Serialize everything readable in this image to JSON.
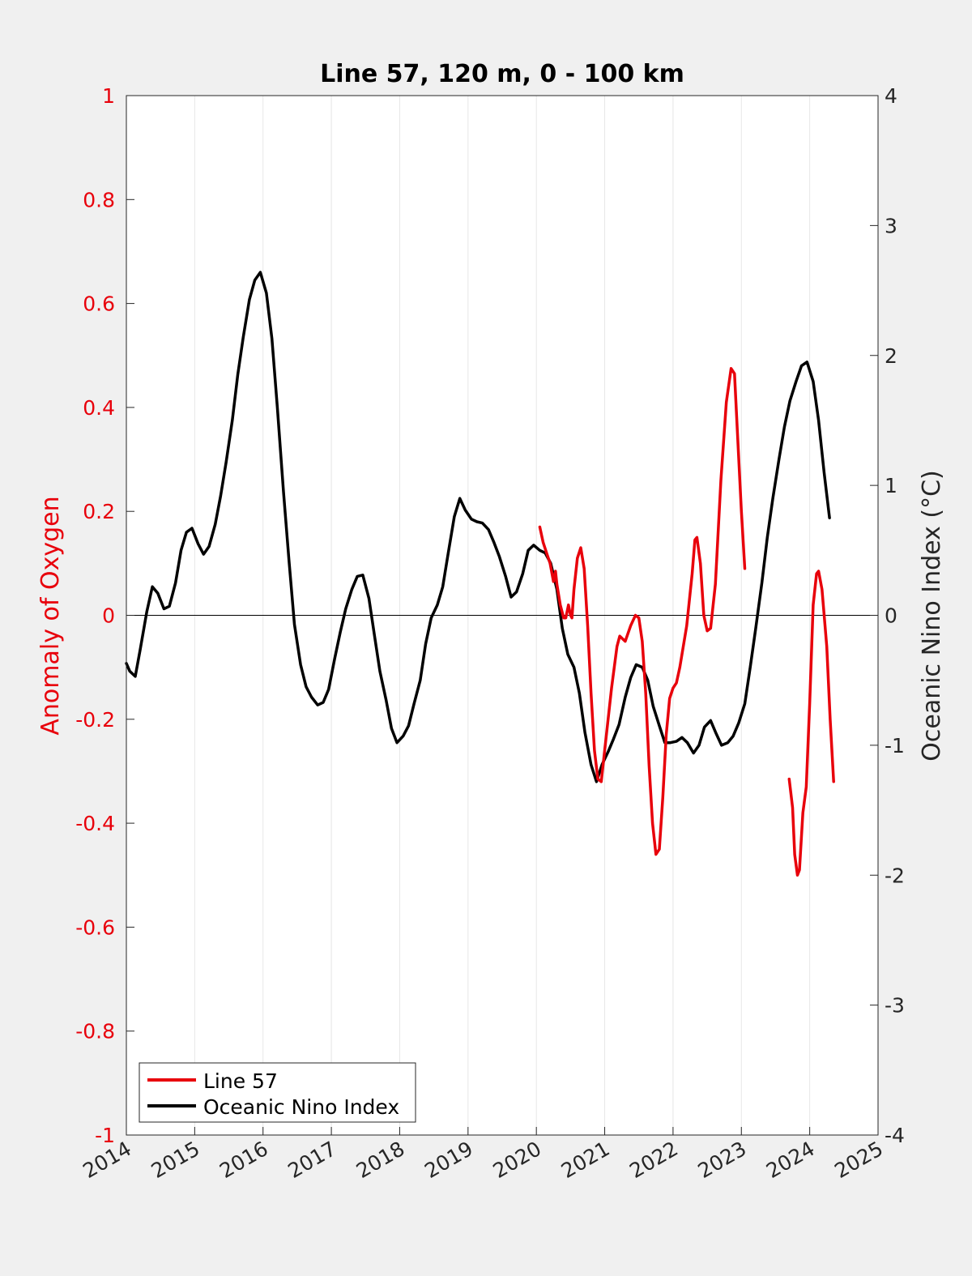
{
  "chart_data": {
    "type": "line",
    "title": "Line 57, 120 m, 0 - 100 km",
    "xlabel": "",
    "ylabel_left": "Anomaly of Oxygen",
    "ylabel_right": "Oceanic Nino Index (°C)",
    "xlim": [
      2014,
      2025
    ],
    "ylim_left": [
      -1,
      1
    ],
    "ylim_right": [
      -4,
      4
    ],
    "x_ticks": [
      2014,
      2015,
      2016,
      2017,
      2018,
      2019,
      2020,
      2021,
      2022,
      2023,
      2024,
      2025
    ],
    "x_tick_labels": [
      "2014",
      "2015",
      "2016",
      "2017",
      "2018",
      "2019",
      "2020",
      "2021",
      "2022",
      "2023",
      "2024",
      "2025"
    ],
    "y_left_ticks": [
      -1,
      -0.8,
      -0.6,
      -0.4,
      -0.2,
      0,
      0.2,
      0.4,
      0.6,
      0.8,
      1
    ],
    "y_left_tick_labels": [
      "-1",
      "-0.8",
      "-0.6",
      "-0.4",
      "-0.2",
      "0",
      "0.2",
      "0.4",
      "0.6",
      "0.8",
      "1"
    ],
    "y_right_ticks": [
      -4,
      -3,
      -2,
      -1,
      0,
      1,
      2,
      3,
      4
    ],
    "y_right_tick_labels": [
      "-4",
      "-3",
      "-2",
      "-1",
      "0",
      "1",
      "2",
      "3",
      "4"
    ],
    "grid": "vertical",
    "zero_line": true,
    "legend_position": "bottom-left",
    "colors": {
      "line57": "#e8000b",
      "oni": "#000000",
      "left_axis": "#e8000b",
      "right_axis": "#262626",
      "background": "#f0f0f0",
      "plot_area": "#ffffff"
    },
    "series": [
      {
        "name": "Line 57",
        "axis": "left",
        "segments": [
          [
            [
              2020.05,
              0.17
            ],
            [
              2020.1,
              0.14
            ],
            [
              2020.15,
              0.12
            ],
            [
              2020.2,
              0.1
            ],
            [
              2020.25,
              0.065
            ],
            [
              2020.28,
              0.085
            ],
            [
              2020.3,
              0.06
            ],
            [
              2020.35,
              0.02
            ],
            [
              2020.4,
              -0.005
            ],
            [
              2020.43,
              -0.005
            ],
            [
              2020.47,
              0.02
            ],
            [
              2020.5,
              0.0
            ],
            [
              2020.52,
              -0.005
            ],
            [
              2020.55,
              0.05
            ],
            [
              2020.6,
              0.11
            ],
            [
              2020.65,
              0.13
            ],
            [
              2020.7,
              0.09
            ],
            [
              2020.75,
              -0.02
            ],
            [
              2020.8,
              -0.15
            ],
            [
              2020.85,
              -0.26
            ],
            [
              2020.9,
              -0.315
            ],
            [
              2020.95,
              -0.32
            ],
            [
              2021.0,
              -0.26
            ],
            [
              2021.1,
              -0.14
            ],
            [
              2021.18,
              -0.06
            ],
            [
              2021.22,
              -0.04
            ],
            [
              2021.3,
              -0.05
            ],
            [
              2021.38,
              -0.02
            ],
            [
              2021.45,
              0.0
            ],
            [
              2021.5,
              -0.005
            ],
            [
              2021.55,
              -0.05
            ],
            [
              2021.6,
              -0.15
            ],
            [
              2021.65,
              -0.29
            ],
            [
              2021.7,
              -0.4
            ],
            [
              2021.75,
              -0.46
            ],
            [
              2021.8,
              -0.45
            ],
            [
              2021.85,
              -0.35
            ],
            [
              2021.9,
              -0.23
            ],
            [
              2021.95,
              -0.16
            ],
            [
              2022.0,
              -0.14
            ],
            [
              2022.05,
              -0.13
            ],
            [
              2022.1,
              -0.1
            ],
            [
              2022.2,
              -0.02
            ],
            [
              2022.28,
              0.08
            ],
            [
              2022.32,
              0.145
            ],
            [
              2022.35,
              0.15
            ],
            [
              2022.4,
              0.1
            ],
            [
              2022.45,
              0.0
            ],
            [
              2022.5,
              -0.03
            ],
            [
              2022.55,
              -0.025
            ],
            [
              2022.62,
              0.06
            ],
            [
              2022.7,
              0.26
            ],
            [
              2022.78,
              0.41
            ],
            [
              2022.85,
              0.475
            ],
            [
              2022.9,
              0.465
            ],
            [
              2022.95,
              0.33
            ],
            [
              2023.0,
              0.2
            ],
            [
              2023.05,
              0.09
            ]
          ],
          [
            [
              2023.7,
              -0.315
            ],
            [
              2023.75,
              -0.37
            ],
            [
              2023.78,
              -0.46
            ],
            [
              2023.82,
              -0.5
            ],
            [
              2023.85,
              -0.49
            ],
            [
              2023.9,
              -0.38
            ],
            [
              2023.95,
              -0.33
            ],
            [
              2024.0,
              -0.17
            ],
            [
              2024.05,
              0.02
            ],
            [
              2024.1,
              0.08
            ],
            [
              2024.13,
              0.085
            ],
            [
              2024.18,
              0.05
            ],
            [
              2024.25,
              -0.06
            ],
            [
              2024.3,
              -0.2
            ],
            [
              2024.35,
              -0.32
            ]
          ]
        ]
      },
      {
        "name": "Oceanic Nino Index",
        "axis": "right",
        "segments": [
          [
            [
              2014.0,
              -0.37
            ],
            [
              2014.05,
              -0.43
            ],
            [
              2014.13,
              -0.47
            ],
            [
              2014.2,
              -0.27
            ],
            [
              2014.3,
              0.03
            ],
            [
              2014.38,
              0.22
            ],
            [
              2014.46,
              0.17
            ],
            [
              2014.55,
              0.05
            ],
            [
              2014.63,
              0.07
            ],
            [
              2014.72,
              0.25
            ],
            [
              2014.8,
              0.5
            ],
            [
              2014.88,
              0.64
            ],
            [
              2014.96,
              0.67
            ],
            [
              2015.05,
              0.55
            ],
            [
              2015.13,
              0.47
            ],
            [
              2015.21,
              0.53
            ],
            [
              2015.3,
              0.7
            ],
            [
              2015.38,
              0.92
            ],
            [
              2015.46,
              1.18
            ],
            [
              2015.55,
              1.5
            ],
            [
              2015.63,
              1.85
            ],
            [
              2015.71,
              2.14
            ],
            [
              2015.8,
              2.43
            ],
            [
              2015.88,
              2.58
            ],
            [
              2015.96,
              2.64
            ],
            [
              2016.05,
              2.48
            ],
            [
              2016.13,
              2.13
            ],
            [
              2016.21,
              1.6
            ],
            [
              2016.3,
              0.95
            ],
            [
              2016.38,
              0.42
            ],
            [
              2016.46,
              -0.07
            ],
            [
              2016.55,
              -0.38
            ],
            [
              2016.63,
              -0.55
            ],
            [
              2016.71,
              -0.63
            ],
            [
              2016.8,
              -0.69
            ],
            [
              2016.88,
              -0.67
            ],
            [
              2016.96,
              -0.57
            ],
            [
              2017.05,
              -0.33
            ],
            [
              2017.13,
              -0.13
            ],
            [
              2017.21,
              0.05
            ],
            [
              2017.3,
              0.2
            ],
            [
              2017.38,
              0.3
            ],
            [
              2017.46,
              0.31
            ],
            [
              2017.55,
              0.13
            ],
            [
              2017.63,
              -0.15
            ],
            [
              2017.71,
              -0.43
            ],
            [
              2017.8,
              -0.65
            ],
            [
              2017.88,
              -0.87
            ],
            [
              2017.96,
              -0.98
            ],
            [
              2018.05,
              -0.93
            ],
            [
              2018.13,
              -0.85
            ],
            [
              2018.21,
              -0.68
            ],
            [
              2018.3,
              -0.5
            ],
            [
              2018.38,
              -0.22
            ],
            [
              2018.46,
              -0.02
            ],
            [
              2018.55,
              0.08
            ],
            [
              2018.63,
              0.22
            ],
            [
              2018.71,
              0.48
            ],
            [
              2018.8,
              0.76
            ],
            [
              2018.88,
              0.9
            ],
            [
              2018.96,
              0.81
            ],
            [
              2019.05,
              0.74
            ],
            [
              2019.13,
              0.72
            ],
            [
              2019.21,
              0.71
            ],
            [
              2019.3,
              0.66
            ],
            [
              2019.38,
              0.56
            ],
            [
              2019.46,
              0.45
            ],
            [
              2019.55,
              0.3
            ],
            [
              2019.63,
              0.14
            ],
            [
              2019.71,
              0.18
            ],
            [
              2019.8,
              0.32
            ],
            [
              2019.88,
              0.5
            ],
            [
              2019.96,
              0.54
            ],
            [
              2020.05,
              0.5
            ],
            [
              2020.13,
              0.48
            ],
            [
              2020.21,
              0.4
            ],
            [
              2020.3,
              0.2
            ],
            [
              2020.38,
              -0.1
            ],
            [
              2020.46,
              -0.3
            ],
            [
              2020.55,
              -0.4
            ],
            [
              2020.63,
              -0.6
            ],
            [
              2020.71,
              -0.9
            ],
            [
              2020.8,
              -1.15
            ],
            [
              2020.88,
              -1.28
            ],
            [
              2020.96,
              -1.15
            ],
            [
              2021.05,
              -1.05
            ],
            [
              2021.13,
              -0.95
            ],
            [
              2021.21,
              -0.84
            ],
            [
              2021.3,
              -0.63
            ],
            [
              2021.38,
              -0.48
            ],
            [
              2021.46,
              -0.38
            ],
            [
              2021.55,
              -0.4
            ],
            [
              2021.63,
              -0.5
            ],
            [
              2021.71,
              -0.7
            ],
            [
              2021.8,
              -0.85
            ],
            [
              2021.88,
              -0.98
            ],
            [
              2021.96,
              -0.98
            ],
            [
              2022.05,
              -0.97
            ],
            [
              2022.13,
              -0.94
            ],
            [
              2022.21,
              -0.98
            ],
            [
              2022.3,
              -1.06
            ],
            [
              2022.38,
              -1.0
            ],
            [
              2022.46,
              -0.86
            ],
            [
              2022.55,
              -0.81
            ],
            [
              2022.63,
              -0.91
            ],
            [
              2022.71,
              -1.0
            ],
            [
              2022.8,
              -0.98
            ],
            [
              2022.88,
              -0.93
            ],
            [
              2022.96,
              -0.83
            ],
            [
              2023.05,
              -0.68
            ],
            [
              2023.13,
              -0.4
            ],
            [
              2023.21,
              -0.1
            ],
            [
              2023.3,
              0.25
            ],
            [
              2023.38,
              0.6
            ],
            [
              2023.46,
              0.9
            ],
            [
              2023.55,
              1.2
            ],
            [
              2023.63,
              1.45
            ],
            [
              2023.71,
              1.65
            ],
            [
              2023.8,
              1.8
            ],
            [
              2023.88,
              1.92
            ],
            [
              2023.96,
              1.95
            ],
            [
              2024.05,
              1.8
            ],
            [
              2024.13,
              1.5
            ],
            [
              2024.21,
              1.1
            ],
            [
              2024.29,
              0.75
            ]
          ]
        ]
      }
    ]
  }
}
